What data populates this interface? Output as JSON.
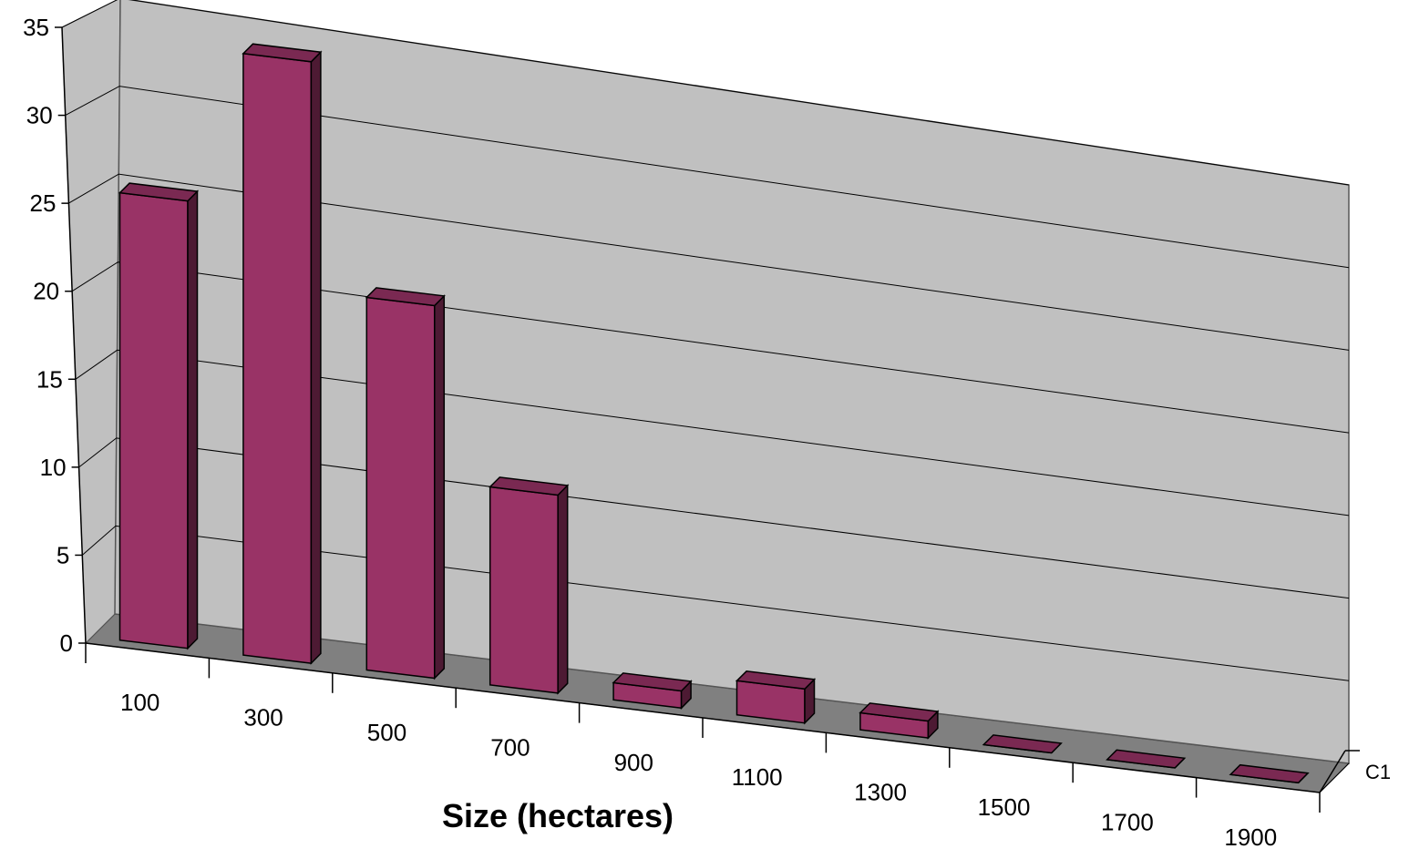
{
  "chart_data": {
    "type": "bar",
    "style": "3d-column",
    "categories": [
      "100",
      "300",
      "500",
      "700",
      "900",
      "1100",
      "1300",
      "1500",
      "1700",
      "1900"
    ],
    "series": [
      {
        "name": "C1",
        "values": [
          25.5,
          34.5,
          21.5,
          11.5,
          1.0,
          2.0,
          1.0,
          0,
          0,
          0
        ]
      }
    ],
    "title": "",
    "xlabel": "Size (hectares)",
    "ylabel": "",
    "ylim": [
      0,
      35
    ],
    "yticks": [
      "0",
      "5",
      "10",
      "15",
      "20",
      "25",
      "30",
      "35"
    ],
    "grid": true,
    "colors": {
      "bar_front": "#993366",
      "bar_top": "#7a2952",
      "bar_side": "#4d1a33",
      "back_wall": "#c0c0c0",
      "side_wall": "#c0c0c0",
      "floor": "#808080",
      "gridline": "#000000"
    }
  }
}
